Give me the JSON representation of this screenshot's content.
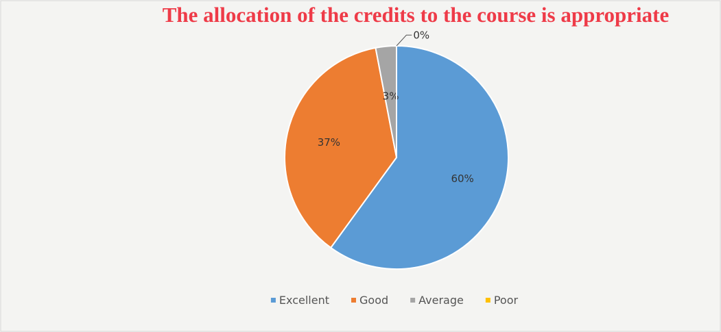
{
  "chart_data": {
    "type": "pie",
    "title": "The allocation of the credits to the course is appropriate",
    "categories": [
      "Excellent",
      "Good",
      "Average",
      "Poor"
    ],
    "values": [
      60,
      37,
      3,
      0
    ],
    "value_labels": [
      "60%",
      "37%",
      "3%",
      "0%"
    ],
    "colors": [
      "#5b9bd5",
      "#ed7d31",
      "#a5a5a5",
      "#ffc000"
    ],
    "legend": "bottom"
  }
}
